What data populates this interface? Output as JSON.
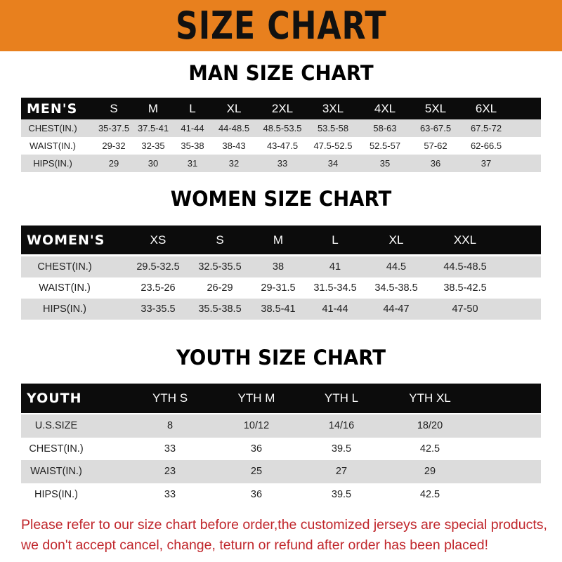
{
  "banner": {
    "title": "SIZE CHART",
    "color": "#E8801E"
  },
  "men": {
    "title": "MAN SIZE CHART",
    "header": [
      "MEN'S",
      "S",
      "M",
      "L",
      "XL",
      "2XL",
      "3XL",
      "4XL",
      "5XL",
      "6XL"
    ],
    "rows": [
      [
        "CHEST(IN.)",
        "35-37.5",
        "37.5-41",
        "41-44",
        "44-48.5",
        "48.5-53.5",
        "53.5-58",
        "58-63",
        "63-67.5",
        "67.5-72"
      ],
      [
        "WAIST(IN.)",
        "29-32",
        "32-35",
        "35-38",
        "38-43",
        "43-47.5",
        "47.5-52.5",
        "52.5-57",
        "57-62",
        "62-66.5"
      ],
      [
        "HIPS(IN.)",
        "29",
        "30",
        "31",
        "32",
        "33",
        "34",
        "35",
        "36",
        "37"
      ]
    ]
  },
  "women": {
    "title": "WOMEN SIZE CHART",
    "header": [
      "WOMEN'S",
      "XS",
      "S",
      "M",
      "L",
      "XL",
      "XXL"
    ],
    "rows": [
      [
        "CHEST(IN.)",
        "29.5-32.5",
        "32.5-35.5",
        "38",
        "41",
        "44.5",
        "44.5-48.5"
      ],
      [
        "WAIST(IN.)",
        "23.5-26",
        "26-29",
        "29-31.5",
        "31.5-34.5",
        "34.5-38.5",
        "38.5-42.5"
      ],
      [
        "HIPS(IN.)",
        "33-35.5",
        "35.5-38.5",
        "38.5-41",
        "41-44",
        "44-47",
        "47-50"
      ]
    ]
  },
  "youth": {
    "title": "YOUTH SIZE CHART",
    "header": [
      "YOUTH",
      "YTH S",
      "YTH M",
      "YTH L",
      "YTH XL"
    ],
    "rows": [
      [
        "U.S.SIZE",
        "8",
        "10/12",
        "14/16",
        "18/20"
      ],
      [
        "CHEST(IN.)",
        "33",
        "36",
        "39.5",
        "42.5"
      ],
      [
        "WAIST(IN.)",
        "23",
        "25",
        "27",
        "29"
      ],
      [
        "HIPS(IN.)",
        "33",
        "36",
        "39.5",
        "42.5"
      ]
    ]
  },
  "notice": {
    "line1": "Please refer to our size chart before order,the customized jerseys are special products,",
    "line2": "we don't accept cancel, change, teturn or refund after order has been placed!",
    "color": "#c0262b"
  }
}
